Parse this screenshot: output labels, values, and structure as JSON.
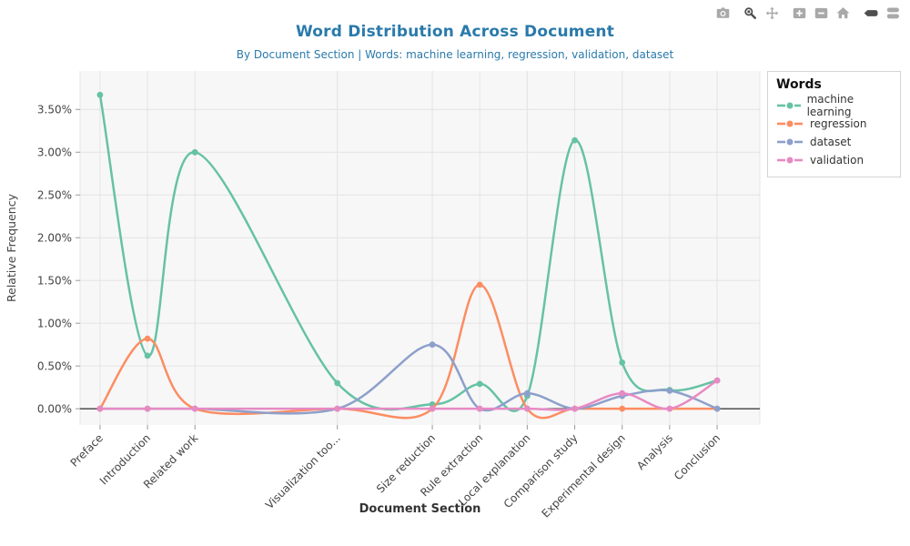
{
  "title": "Word Distribution Across Document",
  "subtitle": "By Document Section | Words: machine learning, regression, validation, dataset",
  "title_color": "#2a7aab",
  "toolbar": {
    "icons": [
      "camera-icon",
      "zoom-icon",
      "pan-icon",
      "zoom-in-icon",
      "zoom-out-icon",
      "autoscale-home-icon",
      "hover-closest-icon",
      "hover-compare-icon"
    ],
    "active_icons": [
      "zoom-icon",
      "hover-closest-icon"
    ],
    "icon_color": "#a9a9a9",
    "active_color": "#4f4f4f"
  },
  "legend": {
    "title": "Words",
    "entries": [
      {
        "label": "machine learning",
        "color": "#66c2a5"
      },
      {
        "label": "regression",
        "color": "#fc8d62"
      },
      {
        "label": "dataset",
        "color": "#8da0cb"
      },
      {
        "label": "validation",
        "color": "#e78ac3"
      }
    ]
  },
  "chart_data": {
    "type": "line",
    "line_shape": "spline",
    "title": "Word Distribution Across Document",
    "xlabel": "Document Section",
    "ylabel": "Relative Frequency",
    "categories": [
      "Preface",
      "Introduction",
      "Related work",
      "Visualization too...",
      "Size reduction",
      "Rule extraction",
      "Local explanation",
      "Comparison study",
      "Experimental design",
      "Analysis",
      "Conclusion"
    ],
    "x_positions": [
      0,
      1,
      2,
      5,
      7,
      8,
      9,
      10,
      11,
      12,
      13
    ],
    "series": [
      {
        "name": "machine learning",
        "color": "#66c2a5",
        "values": [
          3.67,
          0.62,
          3.0,
          0.3,
          0.05,
          0.29,
          0.15,
          3.14,
          0.54,
          0.22,
          0.33
        ]
      },
      {
        "name": "regression",
        "color": "#fc8d62",
        "values": [
          0,
          0.82,
          0,
          0,
          0,
          1.45,
          0,
          0,
          0,
          0,
          0
        ]
      },
      {
        "name": "dataset",
        "color": "#8da0cb",
        "values": [
          0,
          0,
          0,
          0,
          0.75,
          0,
          0.18,
          0,
          0.15,
          0.21,
          0
        ]
      },
      {
        "name": "validation",
        "color": "#e78ac3",
        "values": [
          0,
          0,
          0,
          0,
          0,
          0,
          0,
          0,
          0.18,
          0,
          0.33
        ]
      }
    ],
    "ytick_labels": [
      "0.00%",
      "0.50%",
      "1.00%",
      "1.50%",
      "2.00%",
      "2.50%",
      "3.00%",
      "3.50%"
    ],
    "ytick_values": [
      0,
      0.5,
      1,
      1.5,
      2,
      2.5,
      3,
      3.5
    ],
    "ylim": [
      -0.19,
      3.95
    ],
    "xlim": [
      -0.42,
      13.9
    ],
    "grid": true,
    "zeroline": true,
    "legend_position": "right",
    "plot_bg": "#f7f7f7",
    "grid_color": "#e4e4e4"
  }
}
